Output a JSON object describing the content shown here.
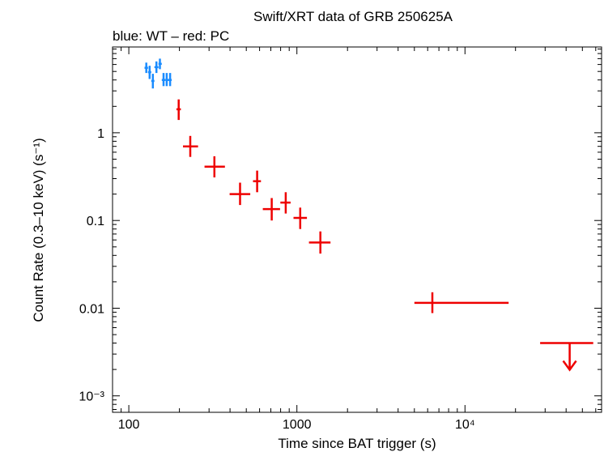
{
  "chart_data": {
    "type": "scatter",
    "title": "Swift/XRT data of GRB 250625A",
    "subtitle": "blue: WT – red: PC",
    "xlabel": "Time since BAT trigger (s)",
    "ylabel": "Count Rate (0.3–10 keV) (s⁻¹)",
    "x_scale": "log",
    "y_scale": "log",
    "xlim": [
      80,
      65000
    ],
    "ylim": [
      0.00065,
      9.5
    ],
    "x_ticks": [
      {
        "value": 100,
        "label": "100"
      },
      {
        "value": 1000,
        "label": "1000"
      },
      {
        "value": 10000,
        "label": "10⁴"
      }
    ],
    "y_ticks": [
      {
        "value": 1,
        "label": "1"
      },
      {
        "value": 0.1,
        "label": "0.1"
      },
      {
        "value": 0.01,
        "label": "0.01"
      },
      {
        "value": 0.001,
        "label": "10⁻³"
      }
    ],
    "series": [
      {
        "mode": "WT",
        "color": "#1a8cff",
        "points": [
          {
            "x": 127,
            "xerr": [
              124,
              130
            ],
            "y": 5.5,
            "yerr": [
              4.8,
              6.3
            ]
          },
          {
            "x": 133,
            "xerr": [
              130,
              136
            ],
            "y": 4.9,
            "yerr": [
              4.1,
              5.8
            ]
          },
          {
            "x": 139,
            "xerr": [
              136,
              142
            ],
            "y": 3.9,
            "yerr": [
              3.2,
              4.7
            ]
          },
          {
            "x": 146,
            "xerr": [
              142,
              150
            ],
            "y": 5.6,
            "yerr": [
              4.8,
              6.5
            ]
          },
          {
            "x": 153,
            "xerr": [
              150,
              157
            ],
            "y": 6.1,
            "yerr": [
              5.3,
              7.0
            ]
          },
          {
            "x": 161,
            "xerr": [
              157,
              165
            ],
            "y": 4.0,
            "yerr": [
              3.4,
              4.8
            ]
          },
          {
            "x": 168,
            "xerr": [
              165,
              172
            ],
            "y": 4.0,
            "yerr": [
              3.4,
              4.8
            ]
          },
          {
            "x": 176,
            "xerr": [
              172,
              180
            ],
            "y": 4.0,
            "yerr": [
              3.4,
              4.8
            ]
          }
        ]
      },
      {
        "mode": "PC",
        "color": "#ee0000",
        "points": [
          {
            "x": 198,
            "xerr": [
              192,
              204
            ],
            "y": 1.85,
            "yerr": [
              1.4,
              2.4
            ]
          },
          {
            "x": 232,
            "xerr": [
              210,
              258
            ],
            "y": 0.7,
            "yerr": [
              0.53,
              0.92
            ]
          },
          {
            "x": 323,
            "xerr": [
              282,
              373
            ],
            "y": 0.41,
            "yerr": [
              0.31,
              0.54
            ]
          },
          {
            "x": 459,
            "xerr": [
              398,
              528
            ],
            "y": 0.2,
            "yerr": [
              0.15,
              0.27
            ]
          },
          {
            "x": 580,
            "xerr": [
              548,
              611
            ],
            "y": 0.28,
            "yerr": [
              0.21,
              0.37
            ]
          },
          {
            "x": 708,
            "xerr": [
              627,
              794
            ],
            "y": 0.135,
            "yerr": [
              0.1,
              0.18
            ]
          },
          {
            "x": 858,
            "xerr": [
              798,
              917
            ],
            "y": 0.16,
            "yerr": [
              0.12,
              0.21
            ]
          },
          {
            "x": 1047,
            "xerr": [
              955,
              1148
            ],
            "y": 0.107,
            "yerr": [
              0.08,
              0.14
            ]
          },
          {
            "x": 1380,
            "xerr": [
              1180,
              1585
            ],
            "y": 0.056,
            "yerr": [
              0.042,
              0.075
            ]
          },
          {
            "x": 6400,
            "xerr": [
              5000,
              18200
            ],
            "y": 0.0115,
            "yerr": [
              0.0088,
              0.0152
            ]
          }
        ]
      }
    ],
    "upper_limits": [
      {
        "mode": "PC",
        "color": "#ee0000",
        "x": 42000,
        "xerr": [
          28000,
          58000
        ],
        "y": 0.004
      }
    ]
  }
}
